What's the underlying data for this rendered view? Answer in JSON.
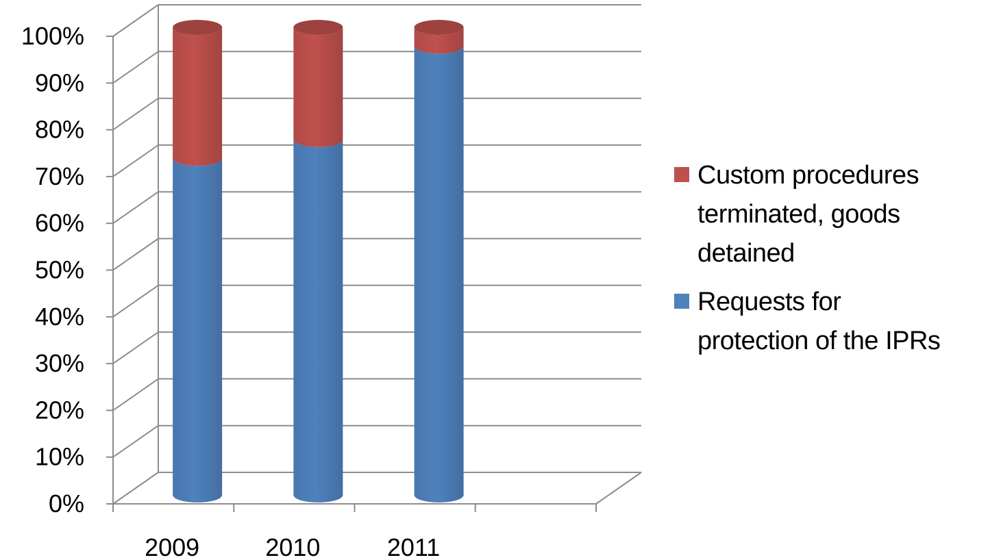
{
  "chart_data": {
    "type": "bar",
    "stacked": true,
    "percent_stacked": true,
    "three_d": true,
    "bar_shape": "cylinder",
    "categories": [
      "2009",
      "2010",
      "2011",
      ""
    ],
    "series": [
      {
        "name": "Requests for protection of the IPRs",
        "color": "#4F81BD",
        "values": [
          72,
          76,
          96,
          null
        ]
      },
      {
        "name": "Custom procedures terminated, goods detained",
        "color": "#C0504D",
        "values": [
          28,
          24,
          4,
          null
        ]
      }
    ],
    "y_ticks": [
      "0%",
      "10%",
      "20%",
      "30%",
      "40%",
      "50%",
      "60%",
      "70%",
      "80%",
      "90%",
      "100%"
    ],
    "ylim": [
      0,
      100
    ],
    "grid": true,
    "legend_position": "right",
    "title": "",
    "xlabel": "",
    "ylabel": ""
  },
  "legend": [
    {
      "label": "Custom procedures terminated, goods detained",
      "lines": [
        "Custom procedures",
        "terminated, goods",
        "detained"
      ],
      "color": "#C0504D"
    },
    {
      "label": "Requests for protection of the IPRs",
      "lines": [
        "Requests for",
        "protection of the IPRs"
      ],
      "color": "#4F81BD"
    }
  ]
}
